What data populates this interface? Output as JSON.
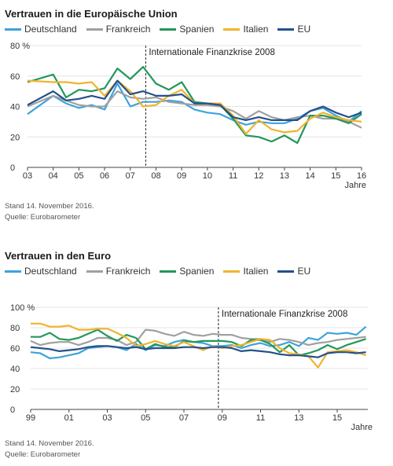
{
  "colors": {
    "Deutschland": "#3ea3dc",
    "Frankreich": "#a0a0a0",
    "Spanien": "#23975a",
    "Italien": "#f0b42d",
    "EU": "#25508a"
  },
  "chart_data": [
    {
      "type": "line",
      "title": "Vertrauen in die Europäische Union",
      "unit_label": "%",
      "xlabel": "Jahre",
      "ylim": [
        0,
        80
      ],
      "yticks": [
        0,
        20,
        40,
        60,
        80
      ],
      "xlim": [
        2003,
        2016
      ],
      "xticks": [
        2003,
        2004,
        2005,
        2006,
        2007,
        2008,
        2009,
        2010,
        2011,
        2012,
        2013,
        2014,
        2015,
        2016
      ],
      "xtick_labels": [
        "03",
        "04",
        "05",
        "06",
        "07",
        "08",
        "09",
        "10",
        "11",
        "12",
        "13",
        "14",
        "15",
        "16"
      ],
      "annotation": {
        "x": 2007.6,
        "label": "Internationale Finanzkrise 2008"
      },
      "series": [
        {
          "name": "Deutschland",
          "x": [
            2003,
            2004,
            2004.5,
            2005,
            2005.5,
            2006,
            2006.5,
            2007,
            2007.5,
            2008,
            2008.5,
            2009,
            2009.5,
            2010,
            2010.5,
            2011,
            2011.5,
            2012,
            2012.5,
            2013,
            2013.5,
            2014,
            2014.5,
            2015,
            2015.5,
            2016
          ],
          "y": [
            35,
            47,
            42,
            39,
            41,
            38,
            55,
            40,
            43,
            43,
            44,
            43,
            38,
            36,
            35,
            31,
            28,
            30,
            29,
            29,
            32,
            37,
            39,
            34,
            30,
            37
          ]
        },
        {
          "name": "Frankreich",
          "x": [
            2003,
            2004,
            2004.5,
            2005,
            2005.5,
            2006,
            2006.5,
            2007,
            2007.5,
            2008,
            2008.5,
            2009,
            2009.5,
            2010,
            2010.5,
            2011,
            2011.5,
            2012,
            2012.5,
            2013,
            2013.5,
            2014,
            2014.5,
            2015,
            2015.5,
            2016
          ],
          "y": [
            40,
            47,
            44,
            41,
            40,
            40,
            50,
            46,
            45,
            46,
            43,
            42,
            41,
            41,
            40,
            37,
            32,
            37,
            33,
            31,
            33,
            34,
            32,
            32,
            30,
            26
          ]
        },
        {
          "name": "Spanien",
          "x": [
            2003,
            2004,
            2004.5,
            2005,
            2005.5,
            2006,
            2006.5,
            2007,
            2007.5,
            2008,
            2008.5,
            2009,
            2009.5,
            2010,
            2010.5,
            2011,
            2011.5,
            2012,
            2012.5,
            2013,
            2013.5,
            2014,
            2014.5,
            2015,
            2015.5,
            2016
          ],
          "y": [
            56,
            61,
            46,
            51,
            50,
            52,
            65,
            58,
            66,
            55,
            51,
            56,
            43,
            42,
            41,
            32,
            21,
            20,
            17,
            21,
            16,
            34,
            34,
            32,
            29,
            35
          ]
        },
        {
          "name": "Italien",
          "x": [
            2003,
            2004,
            2004.5,
            2005,
            2005.5,
            2006,
            2006.5,
            2007,
            2007.5,
            2008,
            2008.5,
            2009,
            2009.5,
            2010,
            2010.5,
            2011,
            2011.5,
            2012,
            2012.5,
            2013,
            2013.5,
            2014,
            2014.5,
            2015,
            2015.5,
            2016
          ],
          "y": [
            57,
            56,
            56,
            55,
            56,
            47,
            57,
            50,
            40,
            41,
            47,
            51,
            42,
            42,
            42,
            34,
            22,
            31,
            25,
            23,
            24,
            32,
            36,
            33,
            31,
            30
          ]
        },
        {
          "name": "EU",
          "x": [
            2003,
            2004,
            2004.5,
            2005,
            2005.5,
            2006,
            2006.5,
            2007,
            2007.5,
            2008,
            2008.5,
            2009,
            2009.5,
            2010,
            2010.5,
            2011,
            2011.5,
            2012,
            2012.5,
            2013,
            2013.5,
            2014,
            2014.5,
            2015,
            2015.5,
            2016
          ],
          "y": [
            41,
            50,
            44,
            45,
            47,
            45,
            57,
            48,
            50,
            47,
            47,
            48,
            42,
            42,
            41,
            33,
            31,
            33,
            31,
            31,
            31,
            37,
            40,
            36,
            33,
            36
          ]
        }
      ]
    },
    {
      "type": "line",
      "title": "Vertrauen in den Euro",
      "unit_label": "%",
      "xlabel": "Jahre",
      "ylim": [
        0,
        100
      ],
      "yticks": [
        0,
        20,
        40,
        60,
        80,
        100
      ],
      "xlim": [
        1999,
        2016.6
      ],
      "xticks": [
        1999,
        2001,
        2003,
        2005,
        2007,
        2009,
        2011,
        2013,
        2015
      ],
      "xtick_labels": [
        "99",
        "01",
        "03",
        "05",
        "07",
        "09",
        "11",
        "13",
        "15"
      ],
      "annotation": {
        "x": 2008.8,
        "label": "Internationale Finanzkrise 2008"
      },
      "series": [
        {
          "name": "Deutschland",
          "x": [
            1999,
            1999.5,
            2000,
            2000.5,
            2001,
            2001.5,
            2002,
            2002.5,
            2003,
            2003.5,
            2004,
            2004.5,
            2005,
            2005.5,
            2006,
            2006.5,
            2007,
            2007.5,
            2008,
            2008.5,
            2009,
            2009.5,
            2010,
            2010.5,
            2011,
            2011.5,
            2012,
            2012.5,
            2013,
            2013.5,
            2014,
            2014.5,
            2015,
            2015.5,
            2016,
            2016.5
          ],
          "y": [
            56,
            55,
            50,
            51,
            53,
            55,
            60,
            61,
            62,
            61,
            58,
            64,
            58,
            63,
            62,
            66,
            68,
            66,
            65,
            62,
            62,
            63,
            60,
            63,
            65,
            62,
            63,
            66,
            62,
            70,
            68,
            75,
            74,
            75,
            73,
            81
          ]
        },
        {
          "name": "Frankreich",
          "x": [
            1999,
            1999.5,
            2000,
            2000.5,
            2001,
            2001.5,
            2002,
            2002.5,
            2003,
            2003.5,
            2004,
            2004.5,
            2005,
            2005.5,
            2006,
            2006.5,
            2007,
            2007.5,
            2008,
            2008.5,
            2009,
            2009.5,
            2010,
            2010.5,
            2011,
            2011.5,
            2012,
            2012.5,
            2013,
            2013.5,
            2014,
            2014.5,
            2015,
            2015.5,
            2016,
            2016.5
          ],
          "y": [
            67,
            63,
            65,
            66,
            66,
            63,
            66,
            70,
            70,
            68,
            63,
            66,
            78,
            77,
            74,
            72,
            76,
            73,
            72,
            74,
            73,
            73,
            70,
            69,
            69,
            66,
            69,
            68,
            66,
            63,
            65,
            66,
            68,
            69,
            70,
            71
          ]
        },
        {
          "name": "Spanien",
          "x": [
            1999,
            1999.5,
            2000,
            2000.5,
            2001,
            2001.5,
            2002,
            2002.5,
            2003,
            2003.5,
            2004,
            2004.5,
            2005,
            2005.5,
            2006,
            2006.5,
            2007,
            2007.5,
            2008,
            2008.5,
            2009,
            2009.5,
            2010,
            2010.5,
            2011,
            2011.5,
            2012,
            2012.5,
            2013,
            2013.5,
            2014,
            2014.5,
            2015,
            2015.5,
            2016,
            2016.5
          ],
          "y": [
            71,
            71,
            75,
            69,
            68,
            70,
            74,
            78,
            72,
            67,
            73,
            70,
            59,
            64,
            61,
            61,
            67,
            66,
            67,
            67,
            67,
            66,
            62,
            68,
            68,
            64,
            56,
            63,
            53,
            55,
            58,
            63,
            59,
            63,
            66,
            69
          ]
        },
        {
          "name": "Italien",
          "x": [
            1999,
            1999.5,
            2000,
            2000.5,
            2001,
            2001.5,
            2002,
            2002.5,
            2003,
            2003.5,
            2004,
            2004.5,
            2005,
            2005.5,
            2006,
            2006.5,
            2007,
            2007.5,
            2008,
            2008.5,
            2009,
            2009.5,
            2010,
            2010.5,
            2011,
            2011.5,
            2012,
            2012.5,
            2013,
            2013.5,
            2014,
            2014.5,
            2015,
            2015.5,
            2016,
            2016.5
          ],
          "y": [
            84,
            84,
            81,
            81,
            82,
            78,
            78,
            79,
            79,
            75,
            70,
            62,
            64,
            67,
            64,
            62,
            66,
            62,
            58,
            62,
            60,
            62,
            63,
            66,
            69,
            68,
            60,
            55,
            54,
            52,
            41,
            56,
            57,
            58,
            56,
            53
          ]
        },
        {
          "name": "EU",
          "x": [
            1999,
            1999.5,
            2000,
            2000.5,
            2001,
            2001.5,
            2002,
            2002.5,
            2003,
            2003.5,
            2004,
            2004.5,
            2005,
            2005.5,
            2006,
            2006.5,
            2007,
            2007.5,
            2008,
            2008.5,
            2009,
            2009.5,
            2010,
            2010.5,
            2011,
            2011.5,
            2012,
            2012.5,
            2013,
            2013.5,
            2014,
            2014.5,
            2015,
            2015.5,
            2016,
            2016.5
          ],
          "y": [
            61,
            60,
            59,
            57,
            58,
            59,
            61,
            62,
            62,
            61,
            60,
            61,
            59,
            60,
            60,
            60,
            61,
            61,
            60,
            61,
            61,
            60,
            57,
            58,
            57,
            56,
            54,
            53,
            53,
            52,
            51,
            55,
            56,
            56,
            55,
            56
          ]
        }
      ]
    }
  ],
  "footnotes": [
    {
      "stand": "Stand 14. November 2016.",
      "quelle": "Quelle: Eurobarometer"
    },
    {
      "stand": "Stand 14. November 2016.",
      "quelle": "Quelle: Eurobarometer"
    }
  ]
}
